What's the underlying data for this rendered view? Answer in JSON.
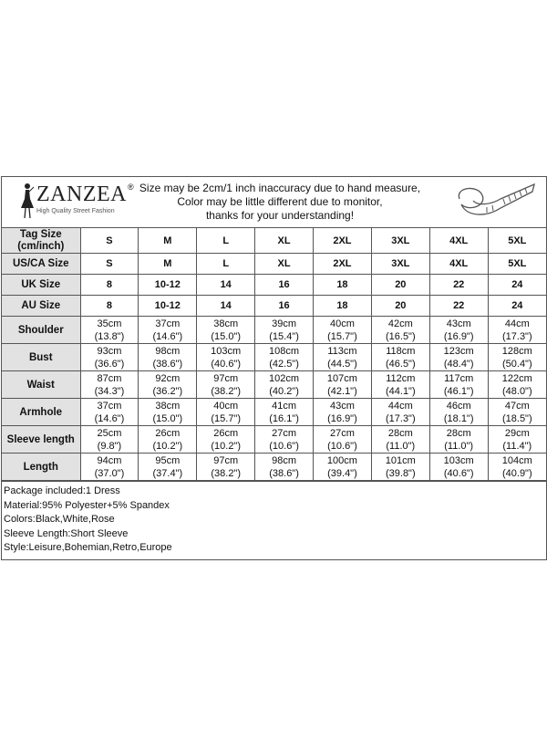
{
  "brand": {
    "name": "ZANZEA",
    "reg": "®",
    "tagline": "High Quality Street Fashion"
  },
  "notice": [
    "Size may be 2cm/1 inch inaccuracy due to hand measure,",
    "Color may be little different due to monitor,",
    "thanks for your understanding!"
  ],
  "size_rows": [
    {
      "label": "Tag Size (cm/inch)",
      "values": [
        "S",
        "M",
        "L",
        "XL",
        "2XL",
        "3XL",
        "4XL",
        "5XL"
      ]
    },
    {
      "label": "US/CA Size",
      "values": [
        "S",
        "M",
        "L",
        "XL",
        "2XL",
        "3XL",
        "4XL",
        "5XL"
      ]
    },
    {
      "label": "UK Size",
      "values": [
        "8",
        "10-12",
        "14",
        "16",
        "18",
        "20",
        "22",
        "24"
      ]
    },
    {
      "label": "AU Size",
      "values": [
        "8",
        "10-12",
        "14",
        "16",
        "18",
        "20",
        "22",
        "24"
      ]
    }
  ],
  "measure_rows": [
    {
      "label": "Shoulder",
      "cm": [
        "35cm",
        "37cm",
        "38cm",
        "39cm",
        "40cm",
        "42cm",
        "43cm",
        "44cm"
      ],
      "inch": [
        "(13.8\")",
        "(14.6\")",
        "(15.0\")",
        "(15.4\")",
        "(15.7\")",
        "(16.5\")",
        "(16.9\")",
        "(17.3\")"
      ]
    },
    {
      "label": "Bust",
      "cm": [
        "93cm",
        "98cm",
        "103cm",
        "108cm",
        "113cm",
        "118cm",
        "123cm",
        "128cm"
      ],
      "inch": [
        "(36.6\")",
        "(38.6\")",
        "(40.6\")",
        "(42.5\")",
        "(44.5\")",
        "(46.5\")",
        "(48.4\")",
        "(50.4\")"
      ]
    },
    {
      "label": "Waist",
      "cm": [
        "87cm",
        "92cm",
        "97cm",
        "102cm",
        "107cm",
        "112cm",
        "117cm",
        "122cm"
      ],
      "inch": [
        "(34.3\")",
        "(36.2\")",
        "(38.2\")",
        "(40.2\")",
        "(42.1\")",
        "(44.1\")",
        "(46.1\")",
        "(48.0\")"
      ]
    },
    {
      "label": "Armhole",
      "cm": [
        "37cm",
        "38cm",
        "40cm",
        "41cm",
        "43cm",
        "44cm",
        "46cm",
        "47cm"
      ],
      "inch": [
        "(14.6\")",
        "(15.0\")",
        "(15.7\")",
        "(16.1\")",
        "(16.9\")",
        "(17.3\")",
        "(18.1\")",
        "(18.5\")"
      ]
    },
    {
      "label": "Sleeve length",
      "cm": [
        "25cm",
        "26cm",
        "26cm",
        "27cm",
        "27cm",
        "28cm",
        "28cm",
        "29cm"
      ],
      "inch": [
        "(9.8\")",
        "(10.2\")",
        "(10.2\")",
        "(10.6\")",
        "(10.6\")",
        "(11.0\")",
        "(11.0\")",
        "(11.4\")"
      ]
    },
    {
      "label": "Length",
      "cm": [
        "94cm",
        "95cm",
        "97cm",
        "98cm",
        "100cm",
        "101cm",
        "103cm",
        "104cm"
      ],
      "inch": [
        "(37.0\")",
        "(37.4\")",
        "(38.2\")",
        "(38.6\")",
        "(39.4\")",
        "(39.8\")",
        "(40.6\")",
        "(40.9\")"
      ]
    }
  ],
  "info": [
    "Package included:1 Dress",
    "Material:95% Polyester+5% Spandex",
    "Colors:Black,White,Rose",
    "Sleeve Length:Short Sleeve",
    "Style:Leisure,Bohemian,Retro,Europe"
  ],
  "colors": {
    "label_bg": "#e2e2e2",
    "border": "#555555"
  }
}
